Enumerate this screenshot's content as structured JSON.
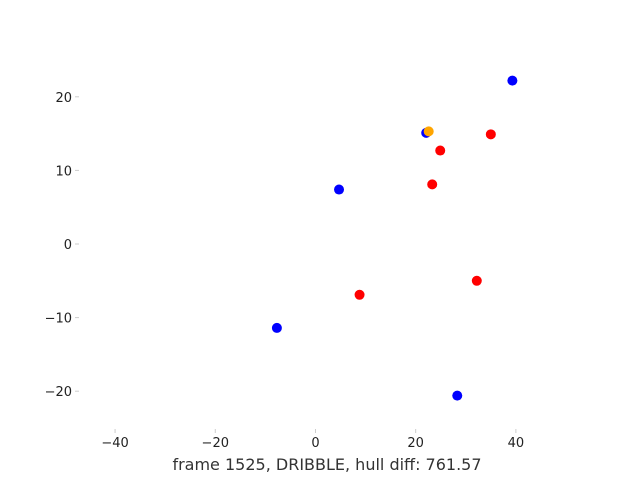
{
  "chart_data": {
    "type": "scatter",
    "title": "",
    "xlabel": "frame 1525, DRIBBLE, hull diff: 761.57",
    "ylabel": "",
    "xlim": [
      -47,
      52
    ],
    "ylim": [
      -25,
      25
    ],
    "grid": false,
    "x_ticks": [
      {
        "value": -40,
        "label": "−40"
      },
      {
        "value": -20,
        "label": "−20"
      },
      {
        "value": 0,
        "label": "0"
      },
      {
        "value": 20,
        "label": "20"
      },
      {
        "value": 40,
        "label": "40"
      }
    ],
    "y_ticks": [
      {
        "value": 20,
        "label": "20"
      },
      {
        "value": 10,
        "label": "10"
      },
      {
        "value": 0,
        "label": "0"
      },
      {
        "value": -10,
        "label": "−10"
      },
      {
        "value": -20,
        "label": "−20"
      }
    ],
    "series": [
      {
        "color": "#0000ff",
        "points": [
          {
            "x": 39.3,
            "y": 22.2
          },
          {
            "x": 22.1,
            "y": 15.1
          },
          {
            "x": 4.7,
            "y": 7.4
          },
          {
            "x": -7.7,
            "y": -11.4
          },
          {
            "x": 28.3,
            "y": -20.6
          }
        ]
      },
      {
        "color": "#ff0000",
        "points": [
          {
            "x": 35.0,
            "y": 14.9
          },
          {
            "x": 24.9,
            "y": 12.7
          },
          {
            "x": 23.3,
            "y": 8.1
          },
          {
            "x": 32.2,
            "y": -5.0
          },
          {
            "x": 8.8,
            "y": -6.9
          }
        ]
      },
      {
        "color": "#ffa500",
        "points": [
          {
            "x": 22.6,
            "y": 15.3
          }
        ]
      }
    ]
  }
}
